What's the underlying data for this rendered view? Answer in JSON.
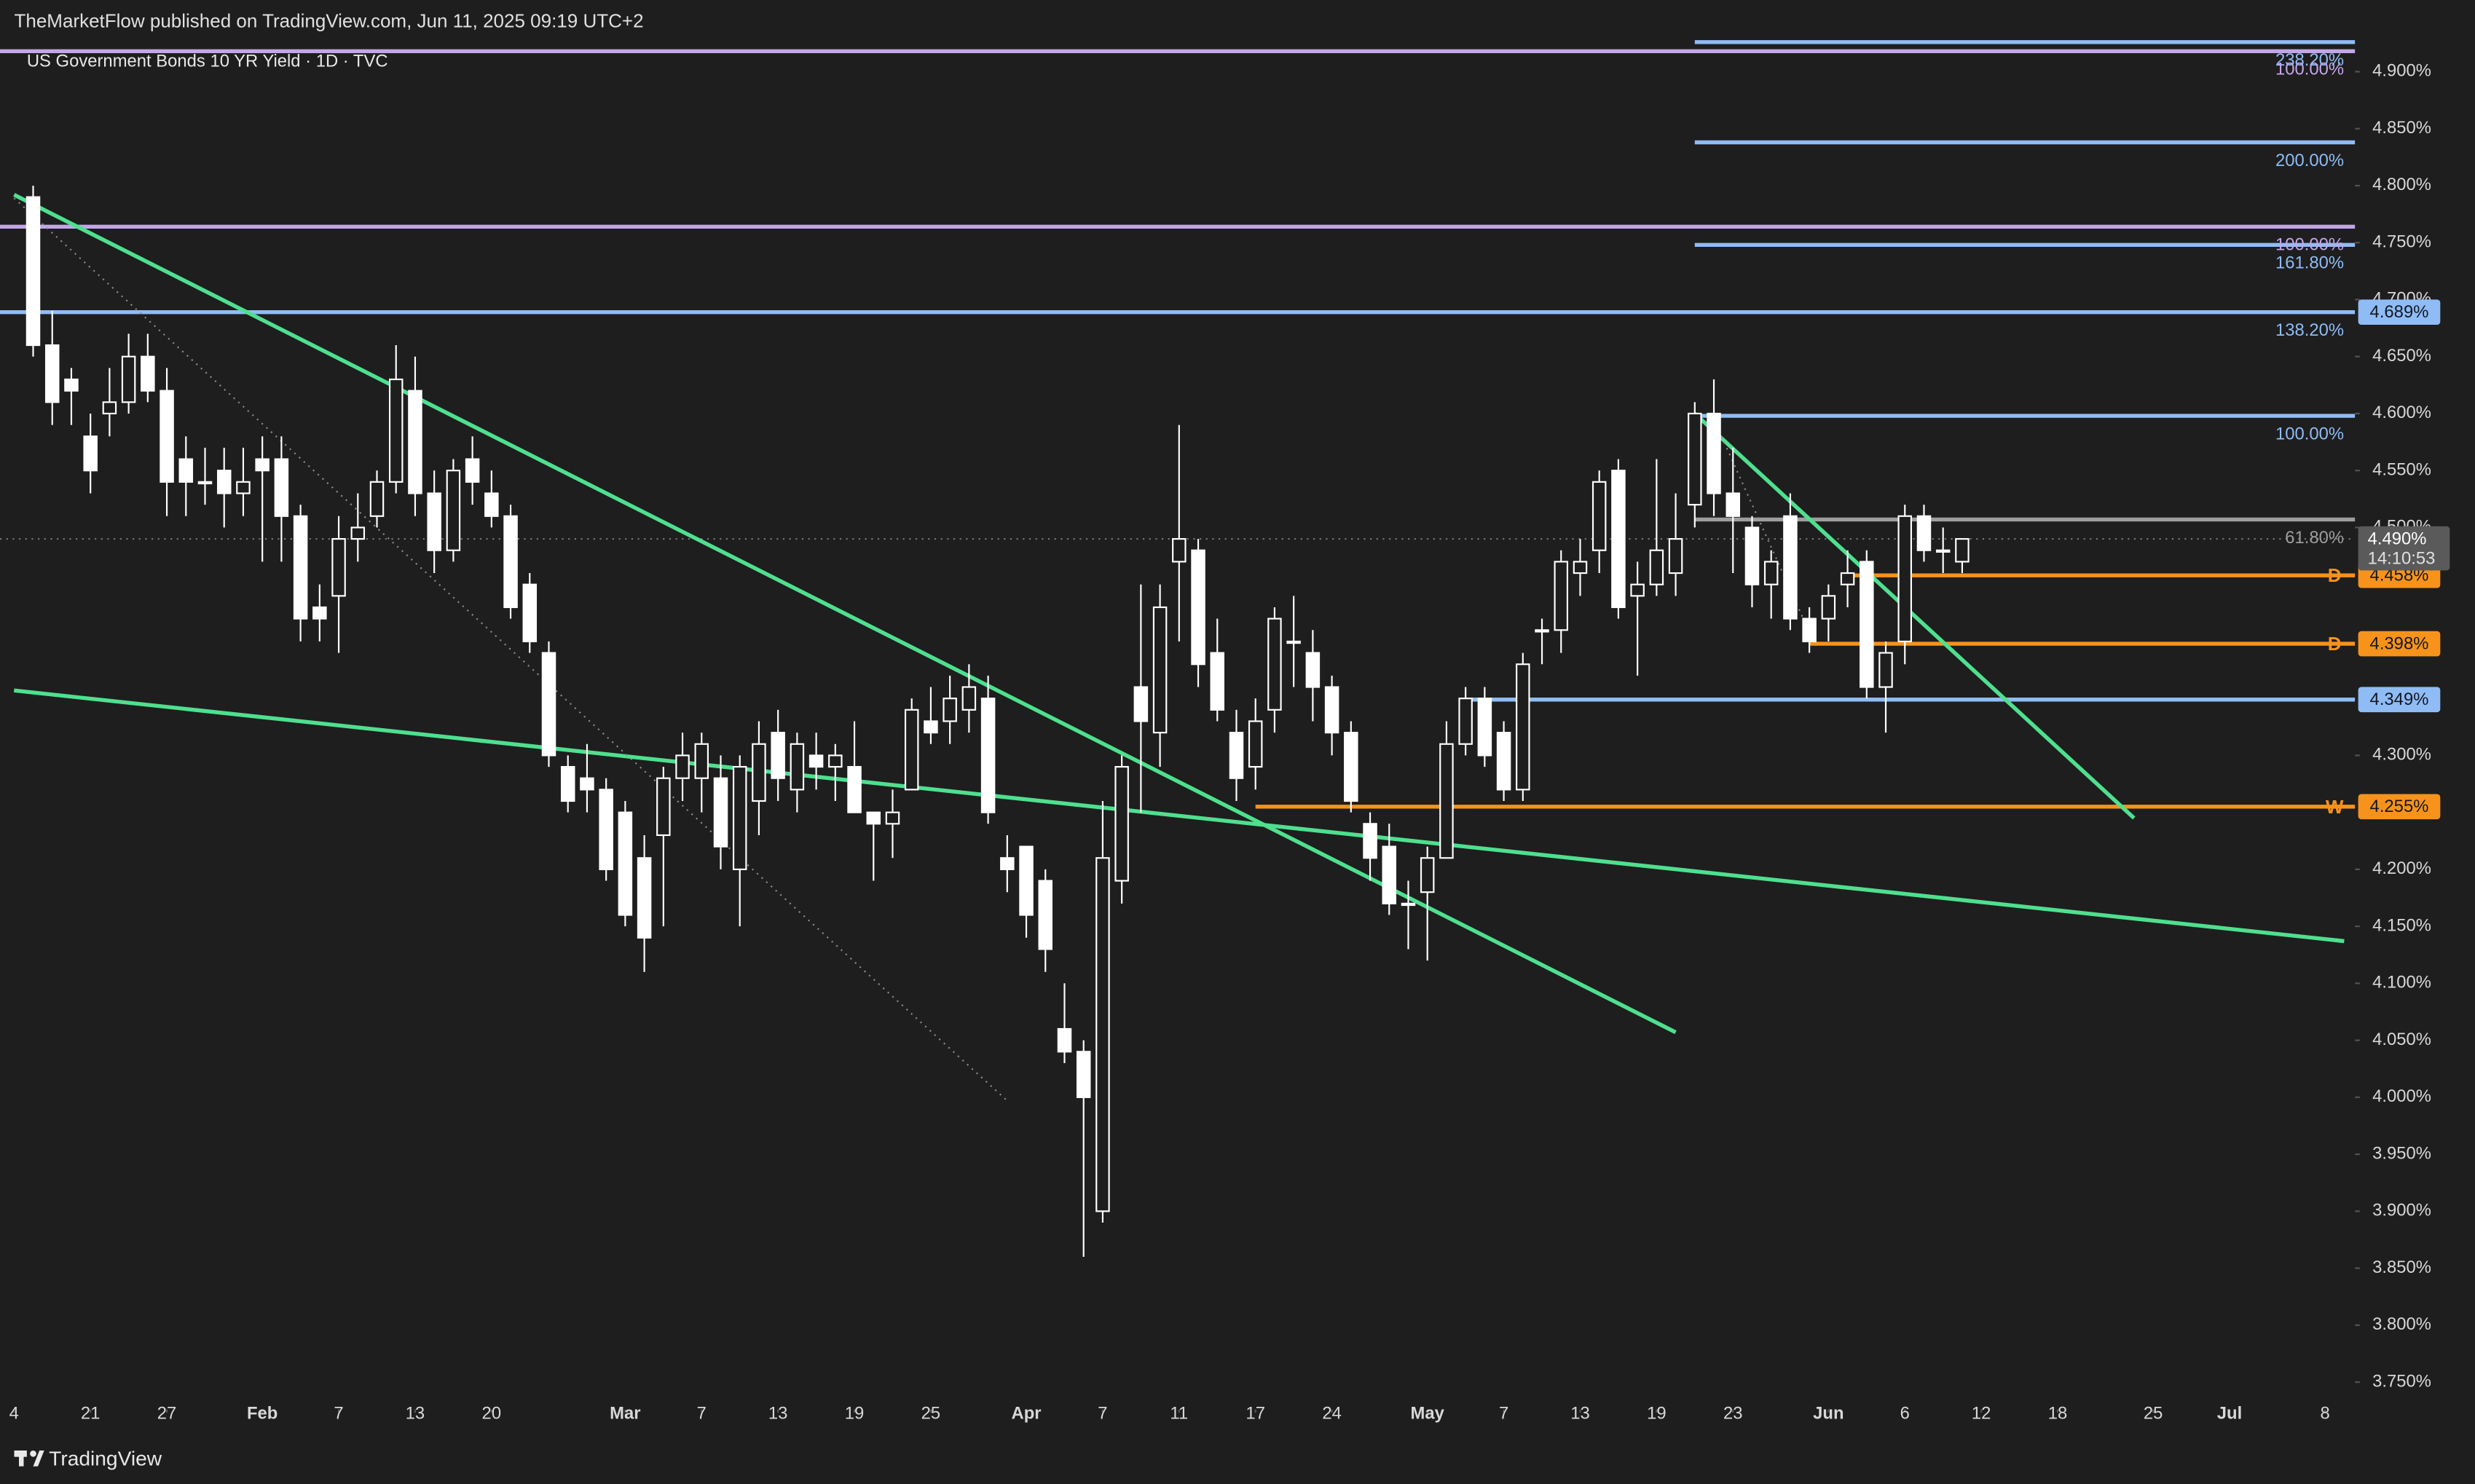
{
  "header": {
    "publisher": "TheMarketFlow published on TradingView.com, Jun 11, 2025 09:19 UTC+2"
  },
  "chart_data": {
    "type": "candlestick",
    "title": "US Government Bonds 10 YR Yield · 1D · TVC",
    "up_color": "#1e1e1e",
    "down_color": "#ffffff",
    "wick_color": "#ffffff",
    "x": [
      "2025-01-15",
      "2025-01-16",
      "2025-01-17",
      "2025-01-21",
      "2025-01-22",
      "2025-01-23",
      "2025-01-24",
      "2025-01-27",
      "2025-01-28",
      "2025-01-29",
      "2025-01-30",
      "2025-01-31",
      "2025-02-03",
      "2025-02-04",
      "2025-02-05",
      "2025-02-06",
      "2025-02-07",
      "2025-02-10",
      "2025-02-11",
      "2025-02-12",
      "2025-02-13",
      "2025-02-14",
      "2025-02-18",
      "2025-02-19",
      "2025-02-20",
      "2025-02-21",
      "2025-02-24",
      "2025-02-25",
      "2025-02-26",
      "2025-02-27",
      "2025-02-28",
      "2025-03-03",
      "2025-03-04",
      "2025-03-05",
      "2025-03-06",
      "2025-03-07",
      "2025-03-10",
      "2025-03-11",
      "2025-03-12",
      "2025-03-13",
      "2025-03-14",
      "2025-03-17",
      "2025-03-18",
      "2025-03-19",
      "2025-03-20",
      "2025-03-21",
      "2025-03-24",
      "2025-03-25",
      "2025-03-26",
      "2025-03-27",
      "2025-03-28",
      "2025-03-31",
      "2025-04-01",
      "2025-04-02",
      "2025-04-03",
      "2025-04-04",
      "2025-04-07",
      "2025-04-08",
      "2025-04-09",
      "2025-04-10",
      "2025-04-11",
      "2025-04-14",
      "2025-04-15",
      "2025-04-16",
      "2025-04-17",
      "2025-04-21",
      "2025-04-22",
      "2025-04-23",
      "2025-04-24",
      "2025-04-25",
      "2025-04-28",
      "2025-04-29",
      "2025-04-30",
      "2025-05-01",
      "2025-05-02",
      "2025-05-05",
      "2025-05-06",
      "2025-05-07",
      "2025-05-08",
      "2025-05-09",
      "2025-05-12",
      "2025-05-13",
      "2025-05-14",
      "2025-05-15",
      "2025-05-16",
      "2025-05-19",
      "2025-05-20",
      "2025-05-21",
      "2025-05-22",
      "2025-05-23",
      "2025-05-27",
      "2025-05-28",
      "2025-05-29",
      "2025-05-30",
      "2025-06-02",
      "2025-06-03",
      "2025-06-04",
      "2025-06-05",
      "2025-06-06",
      "2025-06-09",
      "2025-06-10",
      "2025-06-11"
    ],
    "open": [
      4.79,
      4.66,
      4.63,
      4.58,
      4.6,
      4.61,
      4.65,
      4.62,
      4.56,
      4.54,
      4.55,
      4.53,
      4.56,
      4.56,
      4.51,
      4.43,
      4.44,
      4.49,
      4.51,
      4.54,
      4.62,
      4.53,
      4.48,
      4.56,
      4.53,
      4.51,
      4.45,
      4.39,
      4.29,
      4.28,
      4.27,
      4.25,
      4.21,
      4.23,
      4.28,
      4.28,
      4.28,
      4.2,
      4.26,
      4.32,
      4.27,
      4.3,
      4.29,
      4.29,
      4.25,
      4.24,
      4.27,
      4.33,
      4.33,
      4.34,
      4.35,
      4.21,
      4.22,
      4.19,
      4.06,
      4.04,
      3.9,
      4.19,
      4.36,
      4.32,
      4.47,
      4.48,
      4.39,
      4.32,
      4.29,
      4.34,
      4.4,
      4.39,
      4.36,
      4.32,
      4.24,
      4.22,
      4.17,
      4.18,
      4.21,
      4.31,
      4.35,
      4.32,
      4.27,
      4.41,
      4.41,
      4.46,
      4.48,
      4.55,
      4.44,
      4.45,
      4.46,
      4.52,
      4.6,
      4.53,
      4.5,
      4.45,
      4.51,
      4.42,
      4.42,
      4.45,
      4.47,
      4.36,
      4.4,
      4.51,
      4.48,
      4.47
    ],
    "high": [
      4.8,
      4.69,
      4.64,
      4.6,
      4.64,
      4.67,
      4.67,
      4.64,
      4.58,
      4.57,
      4.57,
      4.57,
      4.58,
      4.58,
      4.52,
      4.45,
      4.51,
      4.53,
      4.55,
      4.66,
      4.65,
      4.55,
      4.56,
      4.58,
      4.55,
      4.52,
      4.46,
      4.4,
      4.3,
      4.31,
      4.28,
      4.26,
      4.23,
      4.29,
      4.32,
      4.32,
      4.3,
      4.3,
      4.33,
      4.34,
      4.32,
      4.32,
      4.31,
      4.33,
      4.25,
      4.27,
      4.35,
      4.36,
      4.37,
      4.38,
      4.37,
      4.23,
      4.22,
      4.2,
      4.1,
      4.05,
      4.26,
      4.3,
      4.45,
      4.45,
      4.59,
      4.49,
      4.42,
      4.34,
      4.35,
      4.43,
      4.44,
      4.41,
      4.37,
      4.33,
      4.25,
      4.24,
      4.19,
      4.22,
      4.33,
      4.36,
      4.36,
      4.33,
      4.39,
      4.42,
      4.48,
      4.49,
      4.55,
      4.56,
      4.47,
      4.56,
      4.53,
      4.61,
      4.63,
      4.57,
      4.51,
      4.48,
      4.53,
      4.43,
      4.45,
      4.48,
      4.48,
      4.4,
      4.52,
      4.52,
      4.5,
      4.49
    ],
    "low": [
      4.65,
      4.59,
      4.59,
      4.53,
      4.58,
      4.6,
      4.61,
      4.51,
      4.51,
      4.52,
      4.5,
      4.51,
      4.47,
      4.47,
      4.4,
      4.4,
      4.39,
      4.47,
      4.5,
      4.53,
      4.51,
      4.46,
      4.47,
      4.52,
      4.5,
      4.42,
      4.39,
      4.29,
      4.25,
      4.25,
      4.19,
      4.15,
      4.11,
      4.15,
      4.26,
      4.25,
      4.2,
      4.15,
      4.23,
      4.26,
      4.25,
      4.27,
      4.26,
      4.25,
      4.19,
      4.21,
      4.27,
      4.31,
      4.31,
      4.32,
      4.24,
      4.18,
      4.14,
      4.11,
      4.03,
      3.86,
      3.89,
      4.17,
      4.25,
      4.29,
      4.4,
      4.36,
      4.33,
      4.26,
      4.27,
      4.32,
      4.36,
      4.33,
      4.3,
      4.25,
      4.19,
      4.16,
      4.13,
      4.12,
      4.21,
      4.3,
      4.29,
      4.26,
      4.26,
      4.38,
      4.39,
      4.44,
      4.46,
      4.42,
      4.37,
      4.44,
      4.44,
      4.5,
      4.51,
      4.46,
      4.43,
      4.42,
      4.41,
      4.39,
      4.4,
      4.43,
      4.35,
      4.32,
      4.38,
      4.47,
      4.46,
      4.46
    ],
    "close": [
      4.66,
      4.61,
      4.62,
      4.55,
      4.61,
      4.65,
      4.62,
      4.54,
      4.54,
      4.54,
      4.53,
      4.54,
      4.55,
      4.51,
      4.42,
      4.42,
      4.49,
      4.5,
      4.54,
      4.63,
      4.53,
      4.48,
      4.55,
      4.54,
      4.51,
      4.43,
      4.4,
      4.3,
      4.26,
      4.27,
      4.2,
      4.16,
      4.14,
      4.28,
      4.3,
      4.31,
      4.22,
      4.29,
      4.31,
      4.28,
      4.31,
      4.29,
      4.3,
      4.25,
      4.24,
      4.25,
      4.34,
      4.32,
      4.35,
      4.36,
      4.25,
      4.2,
      4.16,
      4.13,
      4.04,
      4.0,
      4.21,
      4.29,
      4.33,
      4.43,
      4.49,
      4.38,
      4.34,
      4.28,
      4.33,
      4.42,
      4.4,
      4.36,
      4.32,
      4.26,
      4.21,
      4.17,
      4.17,
      4.21,
      4.31,
      4.35,
      4.3,
      4.27,
      4.38,
      4.41,
      4.47,
      4.47,
      4.54,
      4.43,
      4.45,
      4.48,
      4.49,
      4.6,
      4.53,
      4.51,
      4.45,
      4.47,
      4.42,
      4.4,
      4.44,
      4.46,
      4.36,
      4.39,
      4.51,
      4.48,
      4.48,
      4.49
    ],
    "ylim": [
      3.726,
      4.928
    ],
    "yticks": [
      {
        "value": 4.9,
        "label": "4.900%"
      },
      {
        "value": 4.85,
        "label": "4.850%"
      },
      {
        "value": 4.8,
        "label": "4.800%"
      },
      {
        "value": 4.75,
        "label": "4.750%"
      },
      {
        "value": 4.7,
        "label": "4.700%"
      },
      {
        "value": 4.65,
        "label": "4.650%"
      },
      {
        "value": 4.6,
        "label": "4.600%"
      },
      {
        "value": 4.55,
        "label": "4.550%"
      },
      {
        "value": 4.5,
        "label": "4.500%"
      },
      {
        "value": 4.3,
        "label": "4.300%"
      },
      {
        "value": 4.2,
        "label": "4.200%"
      },
      {
        "value": 4.15,
        "label": "4.150%"
      },
      {
        "value": 4.1,
        "label": "4.100%"
      },
      {
        "value": 4.05,
        "label": "4.050%"
      },
      {
        "value": 4.0,
        "label": "4.000%"
      },
      {
        "value": 3.95,
        "label": "3.950%"
      },
      {
        "value": 3.9,
        "label": "3.900%"
      },
      {
        "value": 3.85,
        "label": "3.850%"
      },
      {
        "value": 3.8,
        "label": "3.800%"
      },
      {
        "value": 3.75,
        "label": "3.750%"
      }
    ],
    "xticks": [
      {
        "value": "2025-01-14",
        "label": "4"
      },
      {
        "value": "2025-01-21",
        "label": "21"
      },
      {
        "value": "2025-01-27",
        "label": "27"
      },
      {
        "value": "2025-02-03",
        "label": "Feb"
      },
      {
        "value": "2025-02-07",
        "label": "7"
      },
      {
        "value": "2025-02-13",
        "label": "13"
      },
      {
        "value": "2025-02-20",
        "label": "20"
      },
      {
        "value": "2025-03-03",
        "label": "Mar"
      },
      {
        "value": "2025-03-07",
        "label": "7"
      },
      {
        "value": "2025-03-13",
        "label": "13"
      },
      {
        "value": "2025-03-19",
        "label": "19"
      },
      {
        "value": "2025-03-25",
        "label": "25"
      },
      {
        "value": "2025-04-01",
        "label": "Apr"
      },
      {
        "value": "2025-04-07",
        "label": "7"
      },
      {
        "value": "2025-04-11",
        "label": "11"
      },
      {
        "value": "2025-04-17",
        "label": "17"
      },
      {
        "value": "2025-04-24",
        "label": "24"
      },
      {
        "value": "2025-05-01",
        "label": "May"
      },
      {
        "value": "2025-05-07",
        "label": "7"
      },
      {
        "value": "2025-05-13",
        "label": "13"
      },
      {
        "value": "2025-05-19",
        "label": "19"
      },
      {
        "value": "2025-05-23",
        "label": "23"
      },
      {
        "value": "2025-06-02",
        "label": "Jun"
      },
      {
        "value": "2025-06-06",
        "label": "6"
      },
      {
        "value": "2025-06-12",
        "label": "12"
      },
      {
        "value": "2025-06-18",
        "label": "18"
      },
      {
        "value": "2025-06-25",
        "label": "25"
      },
      {
        "value": "2025-07-01",
        "label": "Jul"
      },
      {
        "value": "2025-07-08",
        "label": "8"
      }
    ],
    "levels": [
      {
        "value": 4.926,
        "color": "#8fbcf5",
        "start": "2025-05-21",
        "label": "238.20%"
      },
      {
        "value": 4.918,
        "color": "#c3a6e8",
        "label": "100.00%"
      },
      {
        "value": 4.838,
        "color": "#8fbcf5",
        "start": "2025-05-21",
        "label": "200.00%"
      },
      {
        "value": 4.764,
        "color": "#c3a6e8",
        "label": "100.00%"
      },
      {
        "value": 4.748,
        "color": "#8fbcf5",
        "start": "2025-05-21",
        "label": "161.80%"
      },
      {
        "value": 4.689,
        "color": "#8fbcf5",
        "label": "138.20%",
        "tag": "4.689%"
      },
      {
        "value": 4.598,
        "color": "#8fbcf5",
        "start": "2025-05-21",
        "label": "100.00%"
      },
      {
        "value": 4.507,
        "color": "#9e9e9e",
        "start": "2025-05-21",
        "label": "61.80%"
      },
      {
        "value": 4.458,
        "color": "#f7931a",
        "start": "2025-06-03",
        "marker": "D",
        "tag": "4.458%"
      },
      {
        "value": 4.398,
        "color": "#f7931a",
        "start": "2025-05-30",
        "marker": "D",
        "tag": "4.398%"
      },
      {
        "value": 4.349,
        "color": "#8fbcf5",
        "start": "2025-05-05",
        "tag": "4.349%"
      },
      {
        "value": 4.255,
        "color": "#f7931a",
        "start": "2025-04-17",
        "marker": "W",
        "tag": "4.255%"
      }
    ],
    "trendlines": [
      {
        "color": "#4ee08f",
        "start": [
          "2025-01-14",
          4.792
        ],
        "end": [
          "2025-05-20",
          4.057
        ]
      },
      {
        "color": "#4ee08f",
        "start": [
          "2025-01-14",
          4.357
        ],
        "end": [
          "2025-07-09",
          4.137
        ]
      },
      {
        "color": "#4ee08f",
        "start": [
          "2025-05-21",
          4.6
        ],
        "end": [
          "2025-06-24",
          4.245
        ]
      },
      {
        "color": "#8a8a8a",
        "style": "dotted",
        "start": [
          "2025-01-14",
          4.789
        ],
        "end": [
          "2025-03-31",
          3.997
        ]
      },
      {
        "color": "#8a8a8a",
        "style": "dotted",
        "start": [
          "2025-05-22",
          4.595
        ],
        "end": [
          "2025-05-30",
          4.408
        ]
      }
    ],
    "last_price": {
      "value": 4.49,
      "label": "4.490%",
      "countdown": "14:10:53"
    }
  },
  "footer": {
    "brand": "TradingView"
  }
}
